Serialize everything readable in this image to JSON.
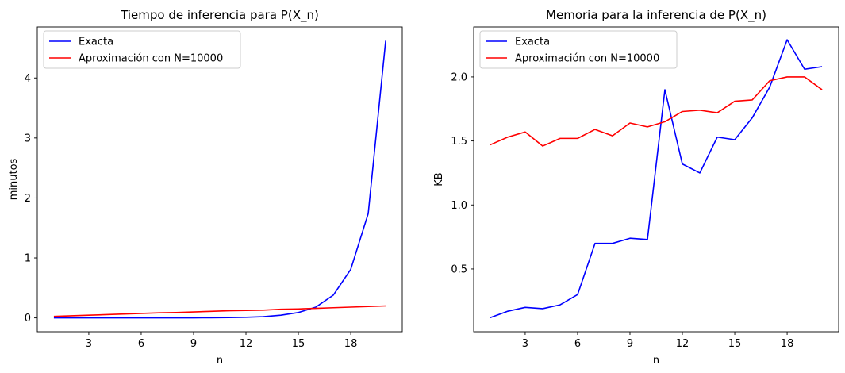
{
  "chart_data": [
    {
      "type": "line",
      "title": "Tiempo de inferencia para P(X_n)",
      "xlabel": "n",
      "ylabel": "minutos",
      "xlim": [
        0.05,
        20.95
      ],
      "ylim": [
        -0.23,
        4.85
      ],
      "xticks": [
        3,
        6,
        9,
        12,
        15,
        18
      ],
      "yticks": [
        0,
        1,
        2,
        3,
        4
      ],
      "legend_position": "top-left",
      "x": [
        1,
        2,
        3,
        4,
        5,
        6,
        7,
        8,
        9,
        10,
        11,
        12,
        13,
        14,
        15,
        16,
        17,
        18,
        19,
        20
      ],
      "series": [
        {
          "name": "Exacta",
          "color": "#0000ff",
          "values": [
            0.0,
            0.0,
            0.0,
            0.0,
            0.0,
            0.0,
            0.0,
            0.0,
            0.0,
            0.003,
            0.005,
            0.01,
            0.02,
            0.045,
            0.09,
            0.18,
            0.38,
            0.81,
            1.74,
            4.62
          ]
        },
        {
          "name": "Aproximación con N=10000",
          "color": "#ff0000",
          "values": [
            0.025,
            0.035,
            0.045,
            0.055,
            0.065,
            0.075,
            0.085,
            0.09,
            0.1,
            0.11,
            0.12,
            0.125,
            0.13,
            0.145,
            0.15,
            0.16,
            0.17,
            0.18,
            0.19,
            0.2
          ]
        }
      ]
    },
    {
      "type": "line",
      "title": "Memoria para la inferencia de P(X_n)",
      "xlabel": "n",
      "ylabel": "KB",
      "xlim": [
        0.05,
        20.95
      ],
      "ylim": [
        0.01,
        2.39
      ],
      "xticks": [
        3,
        6,
        9,
        12,
        15,
        18
      ],
      "yticks": [
        0.5,
        1.0,
        1.5,
        2.0
      ],
      "yticklabels": [
        "0.5",
        "1.0",
        "1.5",
        "2.0"
      ],
      "legend_position": "top-left",
      "x": [
        1,
        2,
        3,
        4,
        5,
        6,
        7,
        8,
        9,
        10,
        11,
        12,
        13,
        14,
        15,
        16,
        17,
        18,
        19,
        20
      ],
      "series": [
        {
          "name": "Exacta",
          "color": "#0000ff",
          "values": [
            0.12,
            0.17,
            0.2,
            0.19,
            0.22,
            0.3,
            0.7,
            0.7,
            0.74,
            0.73,
            1.9,
            1.32,
            1.25,
            1.53,
            1.51,
            1.68,
            1.92,
            2.29,
            2.06,
            2.08
          ]
        },
        {
          "name": "Aproximación con N=10000",
          "color": "#ff0000",
          "values": [
            1.47,
            1.53,
            1.57,
            1.46,
            1.52,
            1.52,
            1.59,
            1.54,
            1.64,
            1.61,
            1.65,
            1.73,
            1.74,
            1.72,
            1.81,
            1.82,
            1.97,
            2.0,
            2.0,
            1.9
          ]
        }
      ]
    }
  ]
}
